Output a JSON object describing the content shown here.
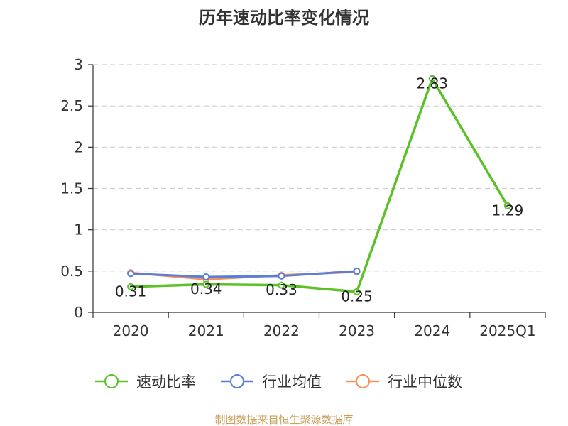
{
  "chart_data": {
    "type": "line",
    "title": "历年速动比率变化情况",
    "categories": [
      "2020",
      "2021",
      "2022",
      "2023",
      "2024",
      "2025Q1"
    ],
    "ylim": [
      0,
      3
    ],
    "yticks": [
      "0",
      "0.5",
      "1",
      "1.5",
      "2",
      "2.5",
      "3"
    ],
    "grid": true,
    "legend_position": "bottom",
    "series": [
      {
        "name": "速动比率",
        "color": "#5cc127",
        "values": [
          0.31,
          0.34,
          0.33,
          0.25,
          2.83,
          1.29
        ],
        "labels": [
          "0.31",
          "0.34",
          "0.33",
          "0.25",
          "2.83",
          "1.29"
        ]
      },
      {
        "name": "行业均值",
        "color": "#5b7fd6",
        "values": [
          0.47,
          0.43,
          0.44,
          0.5,
          null,
          null
        ]
      },
      {
        "name": "行业中位数",
        "color": "#f4925c",
        "values": [
          0.48,
          0.4,
          0.45,
          0.49,
          null,
          null
        ]
      }
    ]
  },
  "source": "制图数据来自恒生聚源数据库"
}
